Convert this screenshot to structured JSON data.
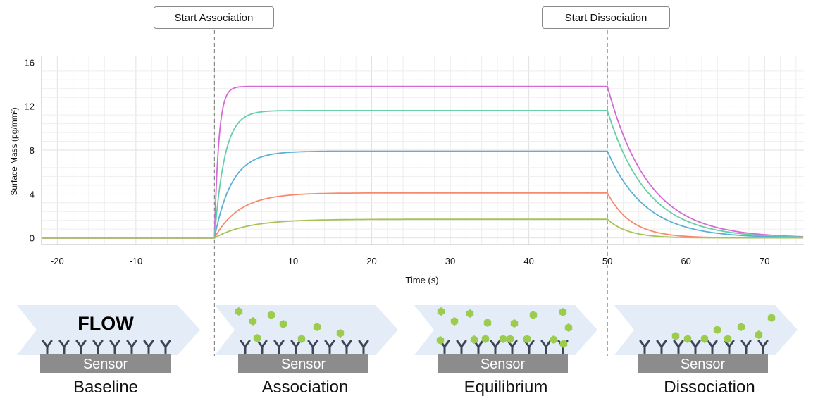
{
  "buttons": {
    "start_association": "Start Association",
    "start_dissociation": "Start Dissociation"
  },
  "chart_data": {
    "type": "line",
    "title": "",
    "xlabel": "Time (s)",
    "ylabel": "Surface Mass (pg/mm²)",
    "xlim": [
      -22,
      75
    ],
    "ylim": [
      -0.6,
      16.6
    ],
    "xticks": [
      -20,
      -10,
      10,
      20,
      30,
      40,
      50,
      60,
      70
    ],
    "yticks": [
      0,
      4,
      8,
      12,
      16
    ],
    "grid": true,
    "vertical_markers": [
      0,
      50
    ],
    "series": [
      {
        "color": "#d46ad4",
        "plateau": 13.8,
        "tau_assoc": 0.55,
        "tau_dissoc": 5.2
      },
      {
        "color": "#66cfa6",
        "plateau": 11.6,
        "tau_assoc": 1.3,
        "tau_dissoc": 5.0
      },
      {
        "color": "#5bb0d6",
        "plateau": 7.9,
        "tau_assoc": 2.2,
        "tau_dissoc": 4.8
      },
      {
        "color": "#f78a6e",
        "plateau": 4.1,
        "tau_assoc": 3.2,
        "tau_dissoc": 3.0
      },
      {
        "color": "#a8c25a",
        "plateau": 1.7,
        "tau_assoc": 4.2,
        "tau_dissoc": 2.6
      }
    ]
  },
  "diagram": {
    "flow_label": "FLOW",
    "sensor_label": "Sensor",
    "panels": [
      {
        "label": "Baseline"
      },
      {
        "label": "Association"
      },
      {
        "label": "Equilibrium"
      },
      {
        "label": "Dissociation"
      }
    ],
    "colors": {
      "arrow": "#e4ecf7",
      "sensor": "#8c8c8c",
      "antibody": "#3d4556",
      "analyte": "#9ccc4e"
    }
  }
}
